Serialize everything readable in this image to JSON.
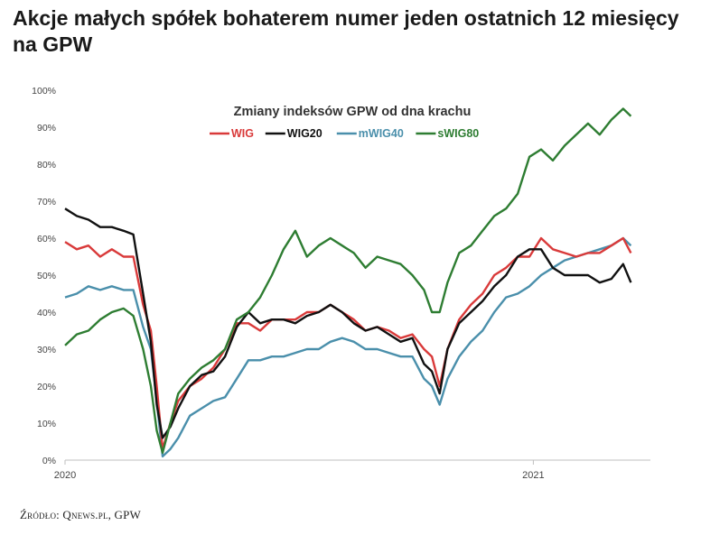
{
  "headline": "Akcje małych spółek bohaterem numer jeden ostatnich 12 miesięcy na GPW",
  "source": "Źródło: Qnews.pl, GPW",
  "chart_data": {
    "type": "line",
    "title": "Zmiany indeksów GPW od dna krachu",
    "ylim": [
      0,
      100
    ],
    "yticks": [
      "0%",
      "10%",
      "20%",
      "30%",
      "40%",
      "50%",
      "60%",
      "70%",
      "80%",
      "90%",
      "100%"
    ],
    "xticks": [
      {
        "label": "2020",
        "x": 0
      },
      {
        "label": "2021",
        "x": 12
      }
    ],
    "xlim": [
      0,
      15
    ],
    "grid": false,
    "legend": "top-center",
    "series": [
      {
        "name": "WIG",
        "color": "#d93a3a",
        "x": [
          0,
          0.3,
          0.6,
          0.9,
          1.2,
          1.5,
          1.75,
          2,
          2.2,
          2.35,
          2.5,
          2.7,
          2.9,
          3.2,
          3.5,
          3.8,
          4.1,
          4.4,
          4.7,
          5,
          5.3,
          5.6,
          5.9,
          6.2,
          6.5,
          6.8,
          7.1,
          7.4,
          7.7,
          8,
          8.3,
          8.6,
          8.9,
          9.2,
          9.4,
          9.6,
          9.8,
          10.1,
          10.4,
          10.7,
          11,
          11.3,
          11.6,
          11.9,
          12.2,
          12.5,
          12.8,
          13.1,
          13.4,
          13.7,
          14,
          14.3,
          14.5
        ],
        "y": [
          59,
          57,
          58,
          55,
          57,
          55,
          55,
          42,
          35,
          20,
          3,
          10,
          16,
          20,
          22,
          25,
          30,
          37,
          37,
          35,
          38,
          38,
          38,
          40,
          40,
          42,
          40,
          38,
          35,
          36,
          35,
          33,
          34,
          30,
          28,
          20,
          30,
          38,
          42,
          45,
          50,
          52,
          55,
          55,
          60,
          57,
          56,
          55,
          56,
          56,
          58,
          60,
          56
        ]
      },
      {
        "name": "WIG20",
        "color": "#111111",
        "x": [
          0,
          0.3,
          0.6,
          0.9,
          1.2,
          1.5,
          1.75,
          2,
          2.2,
          2.35,
          2.5,
          2.7,
          2.9,
          3.2,
          3.5,
          3.8,
          4.1,
          4.4,
          4.7,
          5,
          5.3,
          5.6,
          5.9,
          6.2,
          6.5,
          6.8,
          7.1,
          7.4,
          7.7,
          8,
          8.3,
          8.6,
          8.9,
          9.2,
          9.4,
          9.6,
          9.8,
          10.1,
          10.4,
          10.7,
          11,
          11.3,
          11.6,
          11.9,
          12.2,
          12.5,
          12.8,
          13.1,
          13.4,
          13.7,
          14,
          14.3,
          14.5
        ],
        "y": [
          68,
          66,
          65,
          63,
          63,
          62,
          61,
          45,
          32,
          15,
          6,
          9,
          14,
          20,
          23,
          24,
          28,
          36,
          40,
          37,
          38,
          38,
          37,
          39,
          40,
          42,
          40,
          37,
          35,
          36,
          34,
          32,
          33,
          26,
          24,
          18,
          30,
          37,
          40,
          43,
          47,
          50,
          55,
          57,
          57,
          52,
          50,
          50,
          50,
          48,
          49,
          53,
          48
        ]
      },
      {
        "name": "mWIG40",
        "color": "#4a8fab",
        "x": [
          0,
          0.3,
          0.6,
          0.9,
          1.2,
          1.5,
          1.75,
          2,
          2.2,
          2.35,
          2.5,
          2.7,
          2.9,
          3.2,
          3.5,
          3.8,
          4.1,
          4.4,
          4.7,
          5,
          5.3,
          5.6,
          5.9,
          6.2,
          6.5,
          6.8,
          7.1,
          7.4,
          7.7,
          8,
          8.3,
          8.6,
          8.9,
          9.2,
          9.4,
          9.6,
          9.8,
          10.1,
          10.4,
          10.7,
          11,
          11.3,
          11.6,
          11.9,
          12.2,
          12.5,
          12.8,
          13.1,
          13.4,
          13.7,
          14,
          14.3,
          14.5
        ],
        "y": [
          44,
          45,
          47,
          46,
          47,
          46,
          46,
          36,
          30,
          16,
          1,
          3,
          6,
          12,
          14,
          16,
          17,
          22,
          27,
          27,
          28,
          28,
          29,
          30,
          30,
          32,
          33,
          32,
          30,
          30,
          29,
          28,
          28,
          22,
          20,
          15,
          22,
          28,
          32,
          35,
          40,
          44,
          45,
          47,
          50,
          52,
          54,
          55,
          56,
          57,
          58,
          60,
          58
        ]
      },
      {
        "name": "sWIG80",
        "color": "#2e7d32",
        "x": [
          0,
          0.3,
          0.6,
          0.9,
          1.2,
          1.5,
          1.75,
          2,
          2.2,
          2.35,
          2.5,
          2.7,
          2.9,
          3.2,
          3.5,
          3.8,
          4.1,
          4.4,
          4.7,
          5,
          5.3,
          5.6,
          5.9,
          6.2,
          6.5,
          6.8,
          7.1,
          7.4,
          7.7,
          8,
          8.3,
          8.6,
          8.9,
          9.2,
          9.4,
          9.6,
          9.8,
          10.1,
          10.4,
          10.7,
          11,
          11.3,
          11.6,
          11.9,
          12.2,
          12.5,
          12.8,
          13.1,
          13.4,
          13.7,
          14,
          14.3,
          14.5
        ],
        "y": [
          31,
          34,
          35,
          38,
          40,
          41,
          39,
          30,
          20,
          8,
          2,
          10,
          18,
          22,
          25,
          27,
          30,
          38,
          40,
          44,
          50,
          57,
          62,
          55,
          58,
          60,
          58,
          56,
          52,
          55,
          54,
          53,
          50,
          46,
          40,
          40,
          48,
          56,
          58,
          62,
          66,
          68,
          72,
          82,
          84,
          81,
          85,
          88,
          91,
          88,
          92,
          95,
          93
        ]
      }
    ]
  }
}
